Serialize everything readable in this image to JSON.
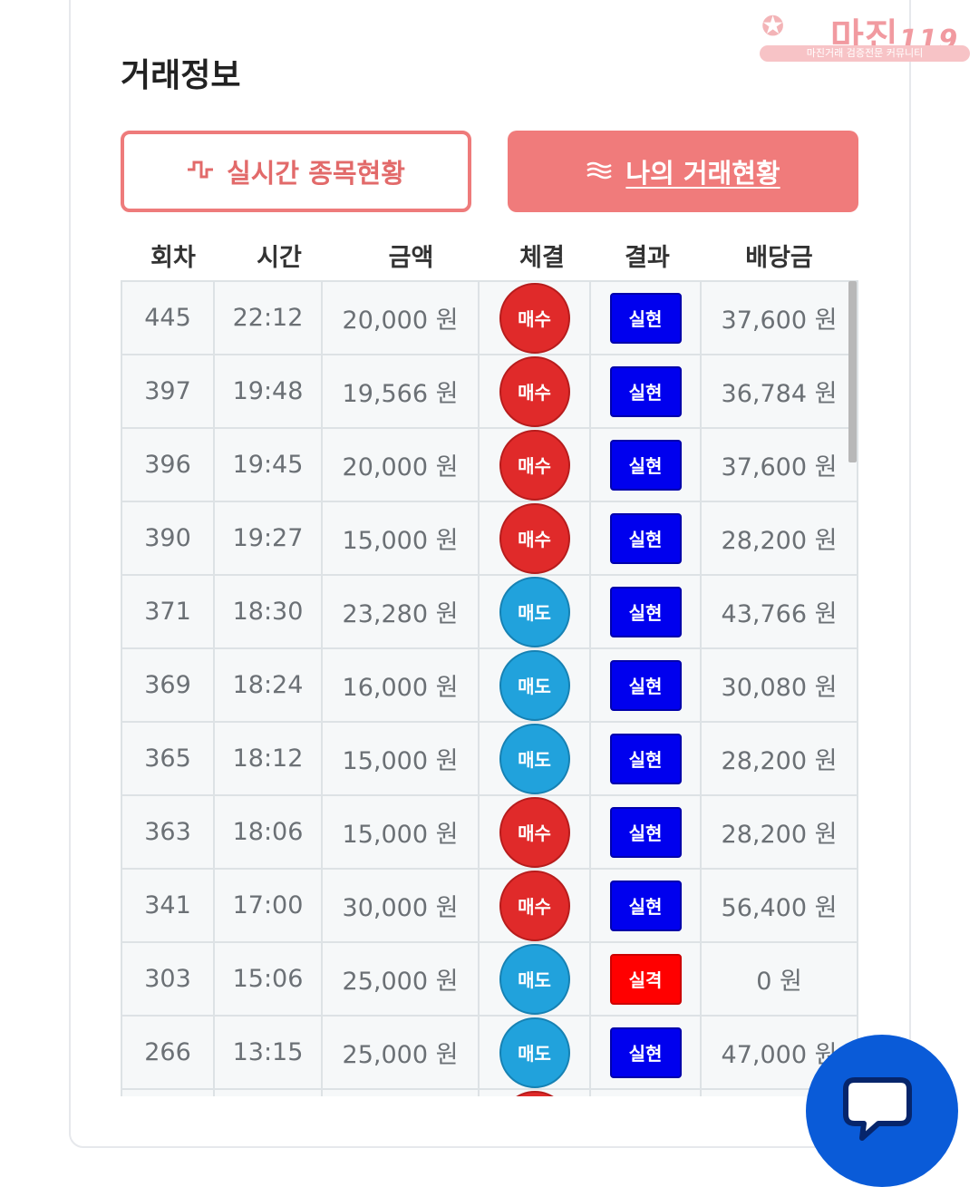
{
  "section_title": "거래정보",
  "watermark": {
    "logo": "마진",
    "logo_suffix": "119",
    "tagline": "마진거래 검증전문 커뮤니티"
  },
  "tabs": [
    {
      "label": "실시간 종목현황",
      "icon": "pulse-icon",
      "active": false
    },
    {
      "label": "나의 거래현황",
      "icon": "waves-icon",
      "active": true
    }
  ],
  "columns": [
    "회차",
    "시간",
    "금액",
    "체결",
    "결과",
    "배당금"
  ],
  "rows": [
    {
      "round": "445",
      "time": "22:12",
      "amount": "20,000 원",
      "side": "매수",
      "side_type": "buy",
      "result": "실현",
      "result_type": "win",
      "payout": "37,600 원"
    },
    {
      "round": "397",
      "time": "19:48",
      "amount": "19,566 원",
      "side": "매수",
      "side_type": "buy",
      "result": "실현",
      "result_type": "win",
      "payout": "36,784 원"
    },
    {
      "round": "396",
      "time": "19:45",
      "amount": "20,000 원",
      "side": "매수",
      "side_type": "buy",
      "result": "실현",
      "result_type": "win",
      "payout": "37,600 원"
    },
    {
      "round": "390",
      "time": "19:27",
      "amount": "15,000 원",
      "side": "매수",
      "side_type": "buy",
      "result": "실현",
      "result_type": "win",
      "payout": "28,200 원"
    },
    {
      "round": "371",
      "time": "18:30",
      "amount": "23,280 원",
      "side": "매도",
      "side_type": "sell",
      "result": "실현",
      "result_type": "win",
      "payout": "43,766 원"
    },
    {
      "round": "369",
      "time": "18:24",
      "amount": "16,000 원",
      "side": "매도",
      "side_type": "sell",
      "result": "실현",
      "result_type": "win",
      "payout": "30,080 원"
    },
    {
      "round": "365",
      "time": "18:12",
      "amount": "15,000 원",
      "side": "매도",
      "side_type": "sell",
      "result": "실현",
      "result_type": "win",
      "payout": "28,200 원"
    },
    {
      "round": "363",
      "time": "18:06",
      "amount": "15,000 원",
      "side": "매수",
      "side_type": "buy",
      "result": "실현",
      "result_type": "win",
      "payout": "28,200 원"
    },
    {
      "round": "341",
      "time": "17:00",
      "amount": "30,000 원",
      "side": "매수",
      "side_type": "buy",
      "result": "실현",
      "result_type": "win",
      "payout": "56,400 원"
    },
    {
      "round": "303",
      "time": "15:06",
      "amount": "25,000 원",
      "side": "매도",
      "side_type": "sell",
      "result": "실격",
      "result_type": "fail",
      "payout": "0 원"
    },
    {
      "round": "266",
      "time": "13:15",
      "amount": "25,000 원",
      "side": "매도",
      "side_type": "sell",
      "result": "실현",
      "result_type": "win",
      "payout": "47,000 원"
    },
    {
      "round": "",
      "time": "",
      "amount": "",
      "side": "",
      "side_type": "buy",
      "result": "",
      "result_type": "",
      "payout": ""
    }
  ],
  "colors": {
    "buy": "#e02a2a",
    "sell": "#21a2dc",
    "win": "#0000ee",
    "fail": "#ff0000",
    "accent": "#f07b7b",
    "chat": "#0a5bd8"
  },
  "chat_icon": "chat-bubble-icon"
}
